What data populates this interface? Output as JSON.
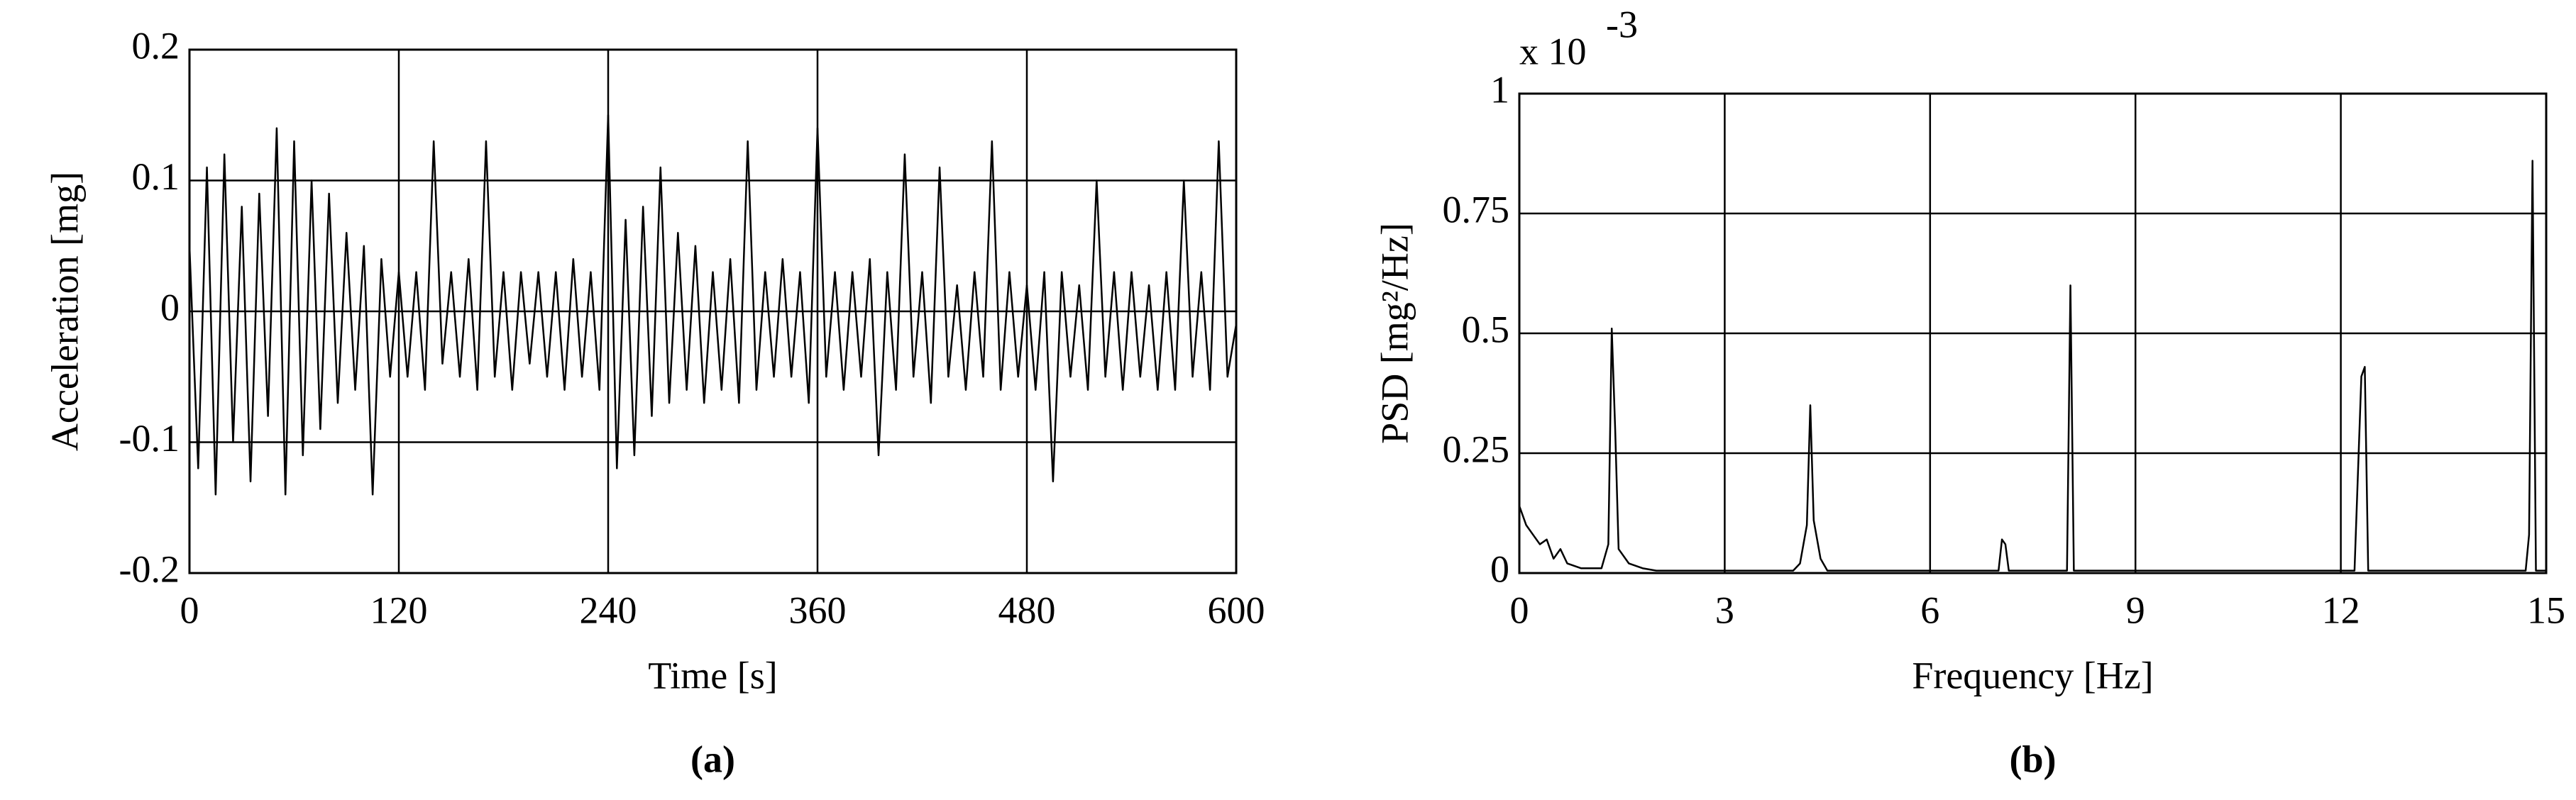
{
  "chart_data": [
    {
      "type": "line",
      "caption": "(a)",
      "xlabel": "Time [s]",
      "ylabel": "Acceleration [mg]",
      "xlim": [
        0,
        600
      ],
      "ylim": [
        -0.2,
        0.2
      ],
      "xticks": [
        0,
        120,
        240,
        360,
        480,
        600
      ],
      "yticks": [
        -0.2,
        -0.1,
        0,
        0.1,
        0.2
      ],
      "grid": true,
      "series": [
        {
          "color": "#000000",
          "x": [
            0,
            5,
            10,
            15,
            20,
            25,
            30,
            35,
            40,
            45,
            50,
            55,
            60,
            65,
            70,
            75,
            80,
            85,
            90,
            95,
            100,
            105,
            110,
            115,
            120,
            125,
            130,
            135,
            140,
            145,
            150,
            155,
            160,
            165,
            170,
            175,
            180,
            185,
            190,
            195,
            200,
            205,
            210,
            215,
            220,
            225,
            230,
            235,
            240,
            245,
            250,
            255,
            260,
            265,
            270,
            275,
            280,
            285,
            290,
            295,
            300,
            305,
            310,
            315,
            320,
            325,
            330,
            335,
            340,
            345,
            350,
            355,
            360,
            365,
            370,
            375,
            380,
            385,
            390,
            395,
            400,
            405,
            410,
            415,
            420,
            425,
            430,
            435,
            440,
            445,
            450,
            455,
            460,
            465,
            470,
            475,
            480,
            485,
            490,
            495,
            500,
            505,
            510,
            515,
            520,
            525,
            530,
            535,
            540,
            545,
            550,
            555,
            560,
            565,
            570,
            575,
            580,
            585,
            590,
            595,
            600
          ],
          "values": [
            0.05,
            -0.12,
            0.11,
            -0.14,
            0.12,
            -0.1,
            0.08,
            -0.13,
            0.09,
            -0.08,
            0.14,
            -0.14,
            0.13,
            -0.11,
            0.1,
            -0.09,
            0.09,
            -0.07,
            0.06,
            -0.06,
            0.05,
            -0.14,
            0.04,
            -0.05,
            0.03,
            -0.05,
            0.03,
            -0.06,
            0.13,
            -0.04,
            0.03,
            -0.05,
            0.04,
            -0.06,
            0.13,
            -0.05,
            0.03,
            -0.06,
            0.03,
            -0.04,
            0.03,
            -0.05,
            0.03,
            -0.06,
            0.04,
            -0.05,
            0.03,
            -0.06,
            0.15,
            -0.12,
            0.07,
            -0.11,
            0.08,
            -0.08,
            0.11,
            -0.07,
            0.06,
            -0.06,
            0.05,
            -0.07,
            0.03,
            -0.06,
            0.04,
            -0.07,
            0.13,
            -0.06,
            0.03,
            -0.05,
            0.04,
            -0.05,
            0.03,
            -0.07,
            0.14,
            -0.05,
            0.03,
            -0.06,
            0.03,
            -0.05,
            0.04,
            -0.11,
            0.03,
            -0.06,
            0.12,
            -0.05,
            0.03,
            -0.07,
            0.11,
            -0.05,
            0.02,
            -0.06,
            0.03,
            -0.05,
            0.13,
            -0.06,
            0.03,
            -0.05,
            0.02,
            -0.06,
            0.03,
            -0.13,
            0.03,
            -0.05,
            0.02,
            -0.06,
            0.1,
            -0.05,
            0.03,
            -0.06,
            0.03,
            -0.05,
            0.02,
            -0.06,
            0.03,
            -0.06,
            0.1,
            -0.05,
            0.03,
            -0.06,
            0.13,
            -0.05,
            -0.01
          ]
        }
      ]
    },
    {
      "type": "line",
      "caption": "(b)",
      "xlabel": "Frequency [Hz]",
      "ylabel": "PSD [mg²/Hz]",
      "y_multiplier": {
        "base": "x 10",
        "exponent": "-3"
      },
      "xlim": [
        0,
        15
      ],
      "ylim": [
        0,
        1
      ],
      "xticks": [
        0,
        3,
        6,
        9,
        12,
        15
      ],
      "yticks": [
        0,
        0.25,
        0.5,
        0.75,
        1
      ],
      "grid": true,
      "series": [
        {
          "color": "#000000",
          "x": [
            0,
            0.1,
            0.2,
            0.3,
            0.4,
            0.5,
            0.6,
            0.7,
            0.9,
            1.2,
            1.3,
            1.35,
            1.4,
            1.45,
            1.6,
            1.8,
            2,
            3,
            4,
            4.1,
            4.2,
            4.25,
            4.3,
            4.4,
            4.5,
            6,
            7,
            7.05,
            7.1,
            7.15,
            8,
            8.05,
            8.1,
            12.2,
            12.3,
            12.35,
            12.4,
            14.7,
            14.75,
            14.8,
            14.85,
            15
          ],
          "values": [
            0.14,
            0.1,
            0.08,
            0.06,
            0.07,
            0.03,
            0.05,
            0.02,
            0.01,
            0.01,
            0.06,
            0.51,
            0.3,
            0.05,
            0.02,
            0.01,
            0.005,
            0.005,
            0.005,
            0.02,
            0.1,
            0.35,
            0.11,
            0.03,
            0.005,
            0.005,
            0.005,
            0.07,
            0.06,
            0.005,
            0.005,
            0.6,
            0.005,
            0.005,
            0.41,
            0.43,
            0.005,
            0.005,
            0.08,
            0.86,
            0.005,
            0.005
          ]
        }
      ]
    }
  ]
}
